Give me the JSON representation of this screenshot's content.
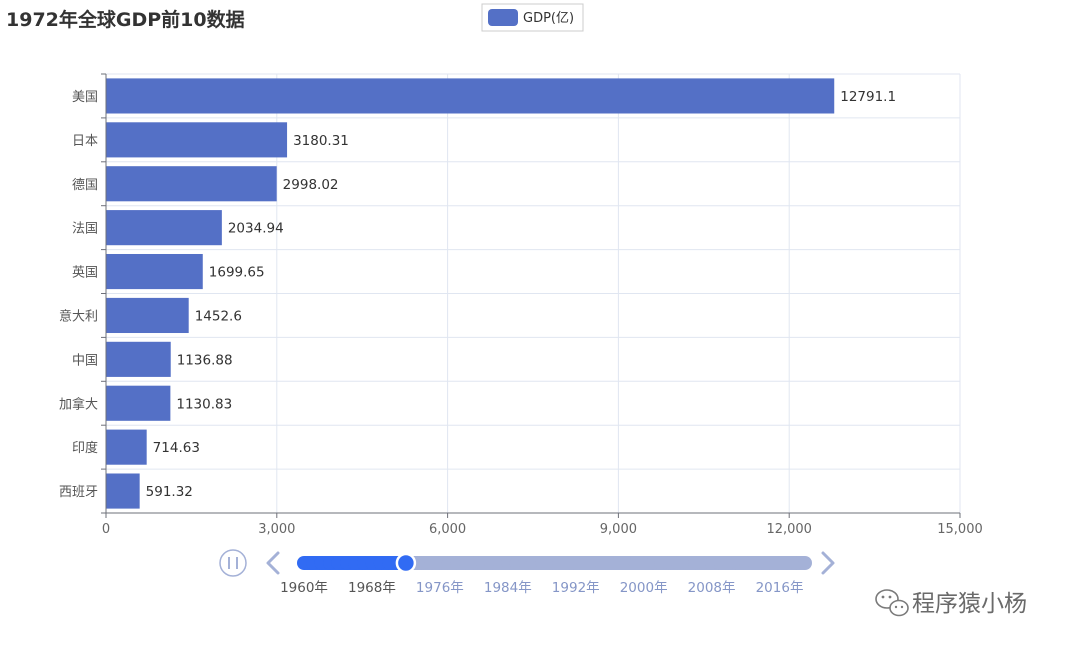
{
  "colors": {
    "bar": "#5470c6",
    "grid": "#e0e6f1",
    "axis": "#6e7079",
    "timeline_passed": "#316bf3",
    "timeline_rest": "#a4b1d7",
    "control": "#a4b1d7",
    "label_passed": "#555555",
    "label_rest": "#8596c7"
  },
  "legend": {
    "label": "GDP(亿)",
    "icon": "rounded-rect-icon"
  },
  "chart_data": {
    "type": "bar",
    "orientation": "horizontal",
    "title": "1972年全球GDP前10数据",
    "categories": [
      "美国",
      "日本",
      "德国",
      "法国",
      "英国",
      "意大利",
      "中国",
      "加拿大",
      "印度",
      "西班牙"
    ],
    "series": [
      {
        "name": "GDP(亿)",
        "values": [
          12791.1,
          3180.31,
          2998.02,
          2034.94,
          1699.65,
          1452.6,
          1136.88,
          1130.83,
          714.63,
          591.32
        ],
        "labels": [
          "12791.1",
          "3180.31",
          "2998.02",
          "2034.94",
          "1699.65",
          "1452.6",
          "1136.88",
          "1130.83",
          "714.63",
          "591.32"
        ]
      }
    ],
    "xlim": [
      0,
      15000
    ],
    "xticks": [
      0,
      3000,
      6000,
      9000,
      12000,
      15000
    ],
    "xtick_labels": [
      "0",
      "3,000",
      "6,000",
      "9,000",
      "12,000",
      "15,000"
    ],
    "grid": true,
    "legend_position": "top-center"
  },
  "timeline": {
    "play_icon": "pause-icon",
    "prev_icon": "chevron-left-icon",
    "next_icon": "chevron-right-icon",
    "start_year": 1960,
    "end_year": 2019,
    "current_year": 1972,
    "labels": [
      "1960年",
      "1968年",
      "1976年",
      "1984年",
      "1992年",
      "2000年",
      "2008年",
      "2016年"
    ],
    "label_years": [
      1960,
      1968,
      1976,
      1984,
      1992,
      2000,
      2008,
      2016
    ]
  },
  "watermark": {
    "icon": "wechat-icon",
    "text": "程序猿小杨"
  }
}
